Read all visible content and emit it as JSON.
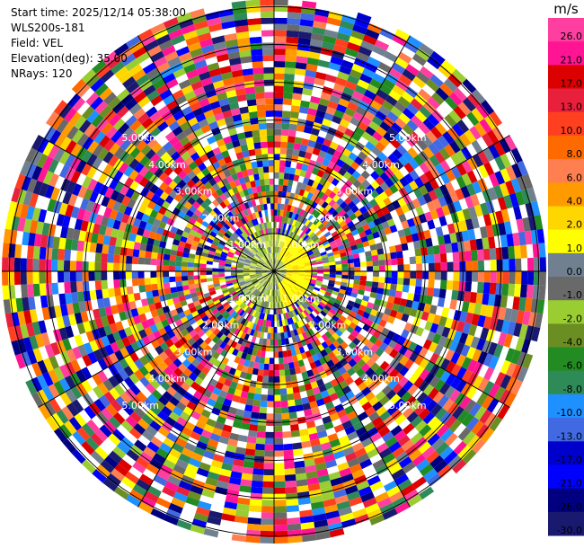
{
  "header": {
    "start_time": "Start time: 2025/12/14 05:38:00",
    "instrument": "WLS200s-181",
    "field": "Field: VEL",
    "elevation": "Elevation(deg): 35.00",
    "nrays": "NRays: 120"
  },
  "chart_data": {
    "type": "heatmap",
    "projection": "polar",
    "nrays": 120,
    "ring_labels": [
      "1.00km",
      "2.00km",
      "3.00km",
      "4.00km",
      "5.00km"
    ],
    "range_km": [
      0,
      7.2
    ],
    "colorbar": {
      "title": "m/s",
      "ticks": [
        "26.0",
        "21.0",
        "17.0",
        "13.0",
        "10.0",
        "8.0",
        "6.0",
        "4.0",
        "2.0",
        "1.0",
        "0.0",
        "-1.0",
        "-2.0",
        "-4.0",
        "-6.0",
        "-8.0",
        "-10.0",
        "-13.0",
        "-17.0",
        "-21.0",
        "-26.0",
        "-30.0"
      ],
      "colors": [
        "#ff3fa0",
        "#ff1493",
        "#dc0000",
        "#e8203c",
        "#ff4020",
        "#ff6a00",
        "#ff7f50",
        "#ff9a00",
        "#ffd700",
        "#ffff00",
        "#708090",
        "#696969",
        "#9acd32",
        "#6b8e23",
        "#228b22",
        "#2e8b57",
        "#1e90ff",
        "#4169e1",
        "#0000cd",
        "#0000ff",
        "#000080",
        "#191970"
      ]
    }
  }
}
